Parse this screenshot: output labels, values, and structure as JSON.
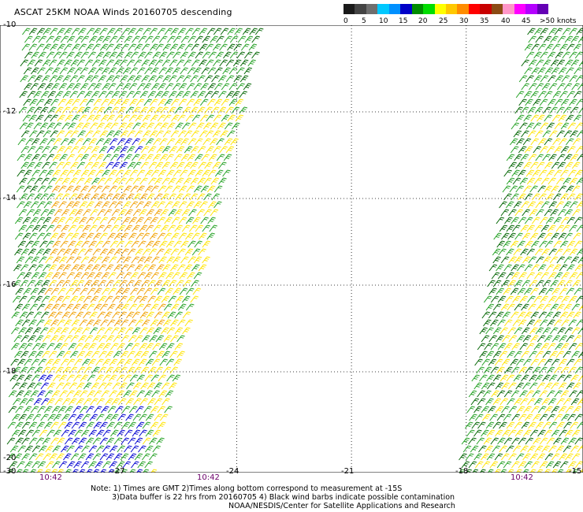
{
  "title": "ASCAT 25KM NOAA Winds 20160705 descending",
  "legend": {
    "colors": [
      "#1a1a1a",
      "#444444",
      "#6e6e6e",
      "#00c8ff",
      "#0090ff",
      "#0000c8",
      "#008c00",
      "#00dd00",
      "#ffff00",
      "#ffc800",
      "#ff8c00",
      "#ff0000",
      "#c80000",
      "#8c4b14",
      "#ff96c8",
      "#ff00ff",
      "#b400ff",
      "#6400b4"
    ],
    "ticks": [
      "0",
      "5",
      "10",
      "15",
      "20",
      "25",
      "30",
      "35",
      "40",
      "45",
      ">50 knots"
    ]
  },
  "latitude_labels": [
    "-10",
    "-12",
    "-14",
    "-16",
    "-18",
    "-20"
  ],
  "longitude_labels": [
    "-30",
    "-27",
    "-24",
    "-21",
    "-18",
    "-15"
  ],
  "time_labels": [
    "10:42",
    "10:42",
    "10:42"
  ],
  "notes": {
    "line1": "Note: 1) Times are GMT 2)Times along bottom correspond to measurement at -15S",
    "line2": "3)Data buffer is 22 hrs from 20160705 4) Black wind barbs indicate possible contamination",
    "line3": "NOAA/NESDIS/Center for Satellite Applications and Research"
  },
  "swaths": [
    {
      "name": "west-swath",
      "lon_range_top": [
        -29.6,
        -23.4
      ],
      "lon_range_bottom": [
        -30.0,
        -26.2
      ],
      "lat_range": [
        -20,
        -10
      ]
    },
    {
      "name": "east-swath",
      "lon_range_top": [
        -16.4,
        -15.0
      ],
      "lon_range_bottom": [
        -18.2,
        -15.0
      ],
      "lat_range": [
        -20,
        -10
      ]
    }
  ],
  "wind_palette": {
    "green": "#22a022",
    "dark_green": "#006400",
    "yellow": "#ffe400",
    "orange": "#f0a000",
    "blue": "#0000d0"
  }
}
